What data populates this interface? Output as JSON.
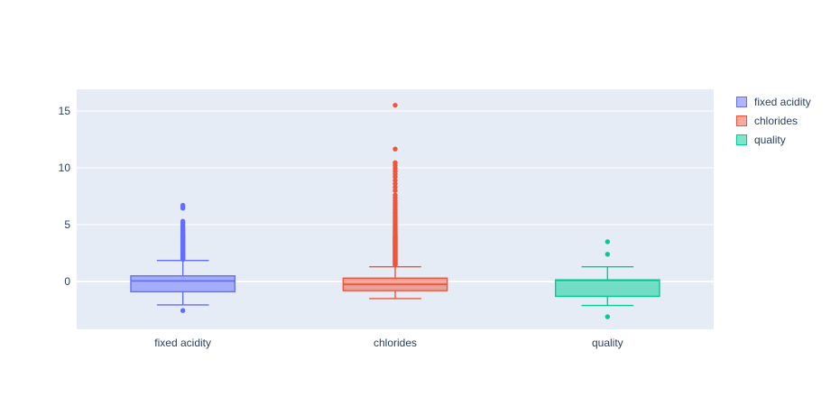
{
  "figure": {
    "title": "",
    "background_color": "#ffffff",
    "plot_bgcolor": "#e5ecf6",
    "grid_color": "#ffffff",
    "text_color": "#2a3f5f"
  },
  "chart_data": {
    "type": "box",
    "title": "",
    "xlabel": "",
    "ylabel": "",
    "categories": [
      "fixed acidity",
      "chlorides",
      "quality"
    ],
    "y_ticks": [
      0,
      5,
      10,
      15
    ],
    "ylim": [
      -4.2,
      16.9
    ],
    "grid": true,
    "legend": {
      "position": "right",
      "entries": [
        "fixed acidity",
        "chlorides",
        "quality"
      ]
    },
    "series": [
      {
        "name": "fixed acidity",
        "color": "#636efa",
        "q1": -0.9,
        "median": 0.05,
        "q3": 0.5,
        "whisker_low": -2.05,
        "whisker_high": 1.85,
        "outliers": [
          -2.55,
          1.95,
          2.0,
          2.05,
          2.1,
          2.15,
          2.2,
          2.25,
          2.3,
          2.35,
          2.4,
          2.45,
          2.5,
          2.55,
          2.6,
          2.65,
          2.7,
          2.75,
          2.8,
          2.85,
          2.9,
          2.95,
          3.0,
          3.05,
          3.1,
          3.15,
          3.2,
          3.25,
          3.3,
          3.35,
          3.4,
          3.45,
          3.5,
          3.55,
          3.6,
          3.65,
          3.7,
          3.75,
          3.8,
          3.85,
          3.9,
          3.95,
          4.0,
          4.1,
          4.2,
          4.3,
          4.4,
          4.5,
          4.6,
          4.7,
          4.85,
          5.0,
          5.15,
          5.3,
          6.45,
          6.6,
          6.7
        ]
      },
      {
        "name": "chlorides",
        "color": "#ef553b",
        "q1": -0.8,
        "median": -0.25,
        "q3": 0.3,
        "whisker_low": -1.5,
        "whisker_high": 1.3,
        "outliers": [
          1.45,
          1.5,
          1.55,
          1.6,
          1.65,
          1.7,
          1.75,
          1.8,
          1.85,
          1.9,
          1.95,
          2.0,
          2.05,
          2.1,
          2.15,
          2.2,
          2.25,
          2.3,
          2.35,
          2.4,
          2.45,
          2.5,
          2.55,
          2.6,
          2.65,
          2.7,
          2.75,
          2.8,
          2.85,
          2.9,
          2.95,
          3.0,
          3.05,
          3.1,
          3.15,
          3.2,
          3.25,
          3.3,
          3.35,
          3.4,
          3.45,
          3.5,
          3.55,
          3.6,
          3.65,
          3.7,
          3.75,
          3.8,
          3.85,
          3.9,
          3.95,
          4.0,
          4.1,
          4.2,
          4.3,
          4.4,
          4.5,
          4.6,
          4.7,
          4.8,
          4.9,
          5.0,
          5.1,
          5.2,
          5.35,
          5.5,
          5.65,
          5.8,
          5.95,
          6.1,
          6.3,
          6.5,
          6.7,
          6.9,
          7.1,
          7.35,
          7.6,
          8.0,
          8.3,
          8.6,
          8.9,
          9.2,
          9.45,
          9.7,
          9.95,
          10.2,
          10.45,
          11.65,
          15.5
        ]
      },
      {
        "name": "quality",
        "color": "#00cc96",
        "q1": -1.3,
        "median": 0.1,
        "q3": 0.15,
        "whisker_low": -2.1,
        "whisker_high": 1.3,
        "outliers": [
          -3.1,
          2.4,
          3.5
        ]
      }
    ]
  }
}
